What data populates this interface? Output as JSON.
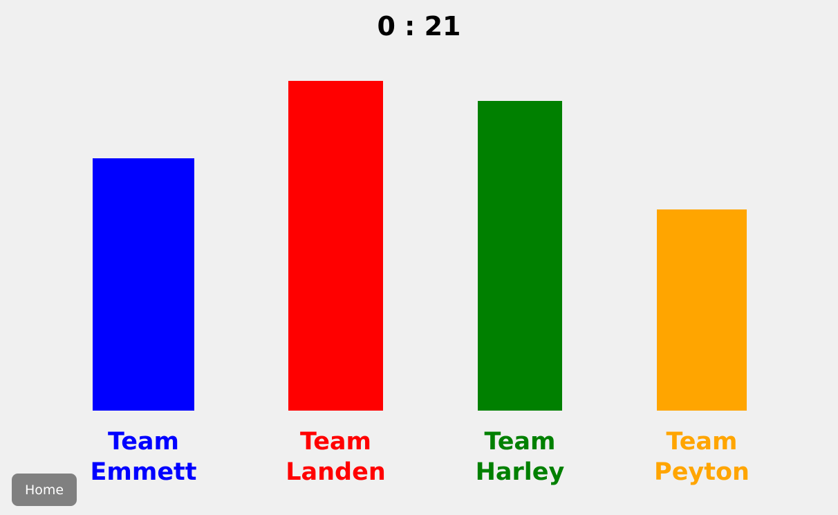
{
  "timer": "0 : 21",
  "scale_max": 100,
  "teams": [
    {
      "first": "Team",
      "second": "Emmett",
      "color": "#0000ff",
      "score": 76.5
    },
    {
      "first": "Team",
      "second": "Landen",
      "color": "#ff0000",
      "score": 100
    },
    {
      "first": "Team",
      "second": "Harley",
      "color": "#008000",
      "score": 94
    },
    {
      "first": "Team",
      "second": "Peyton",
      "color": "#ffa500",
      "score": 61
    }
  ],
  "home_button": {
    "label": "Home"
  }
}
